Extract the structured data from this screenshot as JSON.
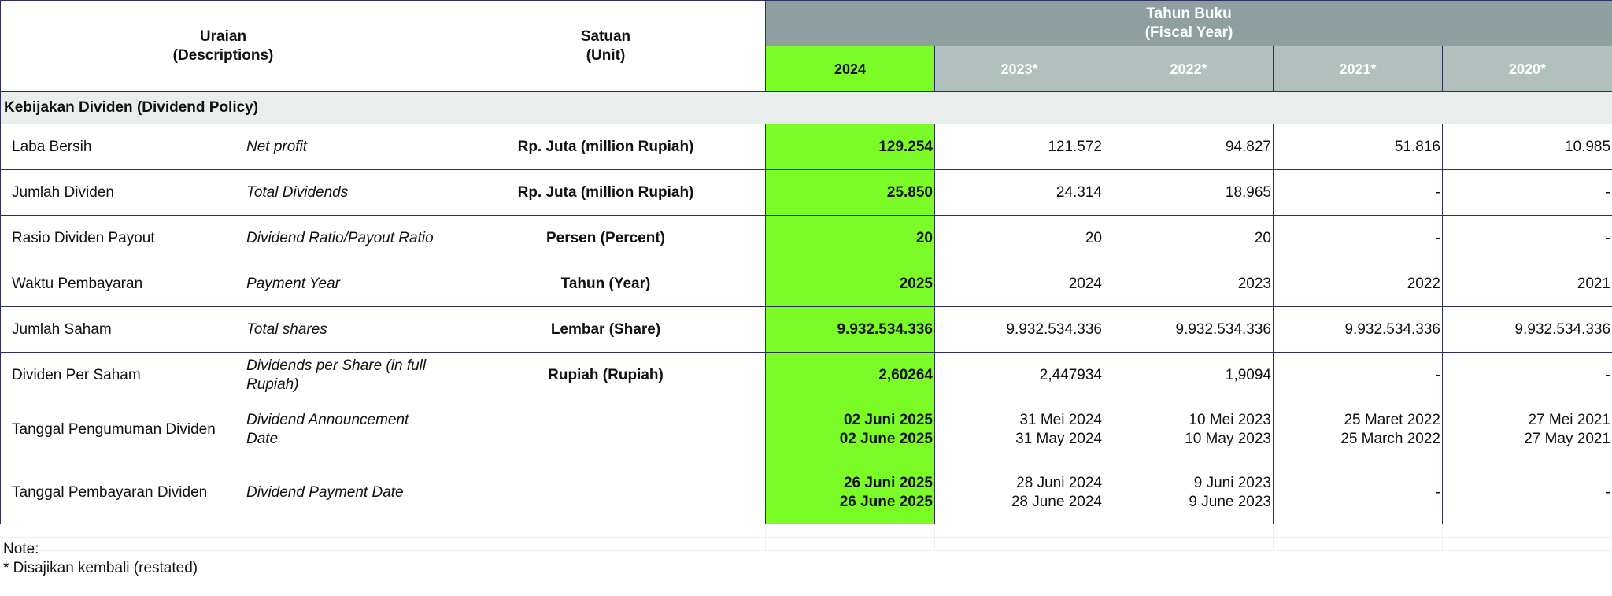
{
  "header": {
    "descriptions_line1": "Uraian",
    "descriptions_line2": "(Descriptions)",
    "unit_line1": "Satuan",
    "unit_line2": "(Unit)",
    "fiscal_line1": "Tahun Buku",
    "fiscal_line2": "(Fiscal Year)",
    "years": [
      "2024",
      "2023*",
      "2022*",
      "2021*",
      "2020*"
    ]
  },
  "section_title": "Kebijakan Dividen (Dividend Policy)",
  "rows": [
    {
      "id": "Laba Bersih",
      "en": "Net profit",
      "unit": "Rp. Juta (million Rupiah)",
      "values": [
        [
          "129.254"
        ],
        [
          "121.572"
        ],
        [
          "94.827"
        ],
        [
          "51.816"
        ],
        [
          "10.985"
        ]
      ]
    },
    {
      "id": "Jumlah Dividen",
      "en": "Total Dividends",
      "unit": "Rp. Juta (million Rupiah)",
      "values": [
        [
          "25.850"
        ],
        [
          "24.314"
        ],
        [
          "18.965"
        ],
        [
          "-"
        ],
        [
          "-"
        ]
      ]
    },
    {
      "id": "Rasio Dividen Payout",
      "en": "Dividend Ratio/Payout Ratio",
      "unit": "Persen (Percent)",
      "values": [
        [
          "20"
        ],
        [
          "20"
        ],
        [
          "20"
        ],
        [
          "-"
        ],
        [
          "-"
        ]
      ]
    },
    {
      "id": "Waktu Pembayaran",
      "en": "Payment Year",
      "unit": "Tahun (Year)",
      "values": [
        [
          "2025"
        ],
        [
          "2024"
        ],
        [
          "2023"
        ],
        [
          "2022"
        ],
        [
          "2021"
        ]
      ]
    },
    {
      "id": "Jumlah Saham",
      "en": "Total shares",
      "unit": "Lembar (Share)",
      "values": [
        [
          "9.932.534.336"
        ],
        [
          "9.932.534.336"
        ],
        [
          "9.932.534.336"
        ],
        [
          "9.932.534.336"
        ],
        [
          "9.932.534.336"
        ]
      ]
    },
    {
      "id": "Dividen Per Saham",
      "en": "Dividends per Share (in full Rupiah)",
      "unit": "Rupiah (Rupiah)",
      "values": [
        [
          "2,60264"
        ],
        [
          "2,447934"
        ],
        [
          "1,9094"
        ],
        [
          "-"
        ],
        [
          "-"
        ]
      ]
    },
    {
      "id": "Tanggal Pengumuman Dividen",
      "en": "Dividend Announcement Date",
      "unit": "",
      "values": [
        [
          "02 Juni 2025",
          "02 June 2025"
        ],
        [
          "31 Mei 2024",
          "31 May 2024"
        ],
        [
          "10 Mei 2023",
          "10 May 2023"
        ],
        [
          "25 Maret 2022",
          "25 March 2022"
        ],
        [
          "27 Mei 2021",
          "27 May 2021"
        ]
      ]
    },
    {
      "id": "Tanggal Pembayaran Dividen",
      "en": "Dividend Payment Date",
      "unit": "",
      "values": [
        [
          "26 Juni 2025",
          "26 June 2025"
        ],
        [
          "28 Juni 2024",
          "28 June 2024"
        ],
        [
          "9 Juni 2023",
          "9 June 2023"
        ],
        [
          "-"
        ],
        [
          "-"
        ]
      ]
    }
  ],
  "note": {
    "label": "Note:",
    "text": "* Disajikan kembali (restated)"
  },
  "colors": {
    "current_year_highlight": "#7cfc26",
    "fiscal_header": "#8e9fa0",
    "prior_year_header": "#b0c0bd",
    "section_band": "#e9eeed",
    "border": "#2b2f5a"
  }
}
